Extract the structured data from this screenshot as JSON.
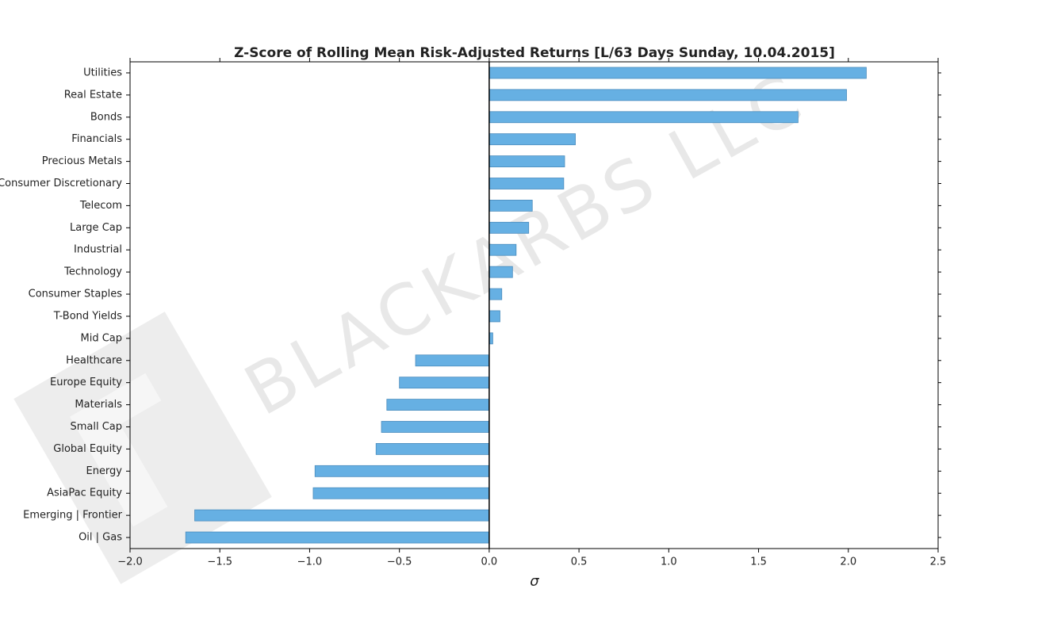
{
  "chart_data": {
    "type": "barh",
    "title": "Z-Score of Rolling Mean Risk-Adjusted Returns [L/63 Days Sunday, 10.04.2015]",
    "xlabel": "σ",
    "watermark": "BLACKARBS LLC",
    "color": "#66b0e3",
    "edgecolor": "#4a8cbd",
    "categories": [
      "Utilities",
      "Real Estate",
      "Bonds",
      "Financials",
      "Precious Metals",
      "Consumer Discretionary",
      "Telecom",
      "Large Cap",
      "Industrial",
      "Technology",
      "Consumer Staples",
      "T-Bond Yields",
      "Mid Cap",
      "Healthcare",
      "Europe Equity",
      "Materials",
      "Small Cap",
      "Global Equity",
      "Energy",
      "AsiaPac Equity",
      "Emerging | Frontier",
      "Oil | Gas"
    ],
    "values": [
      2.1,
      1.99,
      1.72,
      0.48,
      0.42,
      0.415,
      0.24,
      0.22,
      0.15,
      0.13,
      0.07,
      0.06,
      0.02,
      -0.41,
      -0.5,
      -0.57,
      -0.6,
      -0.63,
      -0.97,
      -0.98,
      -1.64,
      -1.69
    ],
    "xlim": [
      -2.0,
      2.5
    ],
    "xticks": [
      {
        "value": -2.0,
        "label": "−2.0"
      },
      {
        "value": -1.5,
        "label": "−1.5"
      },
      {
        "value": -1.0,
        "label": "−1.0"
      },
      {
        "value": -0.5,
        "label": "−0.5"
      },
      {
        "value": 0.0,
        "label": "0.0"
      },
      {
        "value": 0.5,
        "label": "0.5"
      },
      {
        "value": 1.0,
        "label": "1.0"
      },
      {
        "value": 1.5,
        "label": "1.5"
      },
      {
        "value": 2.0,
        "label": "2.0"
      },
      {
        "value": 2.5,
        "label": "2.5"
      }
    ]
  }
}
